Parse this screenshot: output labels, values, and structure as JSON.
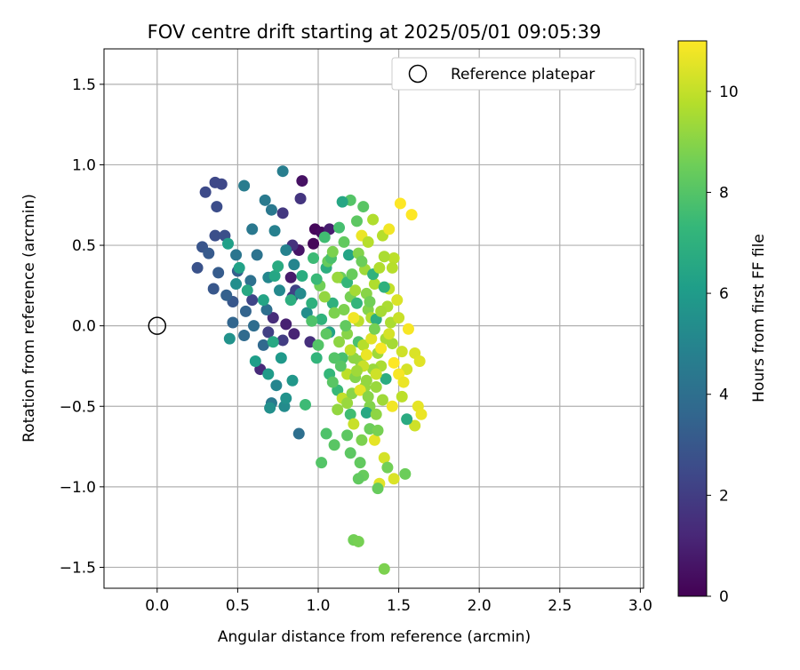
{
  "chart_data": {
    "type": "scatter",
    "title": "FOV centre drift starting at 2025/05/01 09:05:39",
    "xlabel": "Angular distance from reference (arcmin)",
    "ylabel": "Rotation from reference (arcmin)",
    "xlim": [
      -0.33,
      3.02
    ],
    "ylim": [
      -1.63,
      1.72
    ],
    "xticks": [
      "0.0",
      "0.5",
      "1.0",
      "1.5",
      "2.0",
      "2.5",
      "3.0"
    ],
    "yticks": [
      "−1.5",
      "−1.0",
      "−0.5",
      "0.0",
      "0.5",
      "1.0",
      "1.5"
    ],
    "grid": true,
    "legend": {
      "placement": "top-right",
      "entries": [
        "Reference platepar"
      ]
    },
    "reference_point": {
      "x": 0.0,
      "y": 0.0
    },
    "colorbar": {
      "label": "Hours from first FF file",
      "colormap": "viridis",
      "range": [
        0,
        11
      ],
      "ticks": [
        "0",
        "2",
        "4",
        "6",
        "8",
        "10"
      ]
    },
    "series": [
      {
        "points": [
          [
            0.98,
            0.6,
            0.2
          ],
          [
            1.02,
            0.58,
            0.3
          ],
          [
            0.9,
            0.9,
            0.5
          ],
          [
            0.88,
            0.47,
            0.6
          ],
          [
            0.83,
            0.3,
            0.8
          ],
          [
            1.07,
            0.6,
            0.9
          ],
          [
            0.97,
            0.51,
            0.2
          ],
          [
            0.8,
            0.01,
            1.0
          ],
          [
            0.85,
            -0.05,
            1.1
          ],
          [
            0.64,
            -0.27,
            1.3
          ],
          [
            0.72,
            0.05,
            1.4
          ],
          [
            0.95,
            -0.1,
            1.5
          ],
          [
            0.84,
            0.5,
            1.6
          ],
          [
            0.89,
            0.79,
            1.7
          ],
          [
            0.78,
            0.7,
            1.8
          ],
          [
            0.84,
            0.18,
            1.9
          ],
          [
            0.78,
            -0.09,
            2.0
          ],
          [
            0.69,
            -0.04,
            2.1
          ],
          [
            0.86,
            0.22,
            2.2
          ],
          [
            0.59,
            0.16,
            2.3
          ],
          [
            0.36,
            0.89,
            2.4
          ],
          [
            0.4,
            0.88,
            2.4
          ],
          [
            0.3,
            0.83,
            2.5
          ],
          [
            0.37,
            0.74,
            2.6
          ],
          [
            0.42,
            0.56,
            2.7
          ],
          [
            0.36,
            0.56,
            2.7
          ],
          [
            0.25,
            0.36,
            2.8
          ],
          [
            0.28,
            0.49,
            2.9
          ],
          [
            0.35,
            0.23,
            3.0
          ],
          [
            0.47,
            0.15,
            3.0
          ],
          [
            0.32,
            0.45,
            3.1
          ],
          [
            0.38,
            0.33,
            3.2
          ],
          [
            0.5,
            0.34,
            3.3
          ],
          [
            0.43,
            0.19,
            3.4
          ],
          [
            0.55,
            0.09,
            3.5
          ],
          [
            0.47,
            0.02,
            3.6
          ],
          [
            0.66,
            -0.12,
            3.7
          ],
          [
            0.54,
            -0.06,
            3.8
          ],
          [
            0.6,
            0.0,
            3.9
          ],
          [
            0.68,
            0.1,
            4.0
          ],
          [
            0.58,
            0.28,
            4.1
          ],
          [
            0.62,
            0.44,
            4.2
          ],
          [
            0.49,
            0.44,
            4.3
          ],
          [
            0.59,
            0.6,
            4.4
          ],
          [
            0.71,
            0.72,
            4.4
          ],
          [
            0.67,
            0.78,
            4.5
          ],
          [
            0.54,
            0.87,
            4.6
          ],
          [
            0.78,
            0.96,
            4.7
          ],
          [
            0.73,
            0.59,
            4.8
          ],
          [
            0.8,
            0.47,
            4.9
          ],
          [
            0.85,
            0.38,
            5.0
          ],
          [
            0.69,
            0.3,
            5.1
          ],
          [
            0.76,
            0.22,
            5.2
          ],
          [
            0.89,
            0.2,
            5.3
          ],
          [
            0.93,
            0.08,
            5.4
          ],
          [
            0.88,
            -0.67,
            4.0
          ],
          [
            0.74,
            -0.37,
            5.0
          ],
          [
            0.71,
            -0.48,
            4.5
          ],
          [
            0.7,
            -0.51,
            5.5
          ],
          [
            0.79,
            -0.5,
            5.3
          ],
          [
            0.8,
            -0.45,
            5.6
          ],
          [
            0.84,
            -0.34,
            5.8
          ],
          [
            0.77,
            -0.2,
            5.9
          ],
          [
            0.69,
            -0.3,
            6.0
          ],
          [
            0.61,
            -0.22,
            6.1
          ],
          [
            0.45,
            -0.08,
            5.6
          ],
          [
            0.49,
            0.26,
            5.4
          ],
          [
            0.44,
            0.51,
            6.2
          ],
          [
            0.51,
            0.36,
            6.3
          ],
          [
            0.66,
            0.16,
            6.4
          ],
          [
            0.73,
            0.31,
            6.5
          ],
          [
            0.56,
            0.22,
            6.6
          ],
          [
            0.72,
            -0.1,
            6.6
          ],
          [
            0.75,
            0.37,
            6.7
          ],
          [
            0.9,
            0.31,
            6.8
          ],
          [
            0.83,
            0.16,
            6.9
          ],
          [
            1.05,
            0.36,
            6.9
          ],
          [
            0.96,
            0.14,
            7.0
          ],
          [
            1.09,
            0.14,
            7.0
          ],
          [
            1.02,
            0.04,
            7.1
          ],
          [
            0.99,
            -0.2,
            7.2
          ],
          [
            1.07,
            -0.3,
            7.3
          ],
          [
            1.12,
            -0.4,
            7.4
          ],
          [
            0.92,
            -0.49,
            7.5
          ],
          [
            1.2,
            -0.55,
            7.6
          ],
          [
            1.15,
            -0.2,
            7.7
          ],
          [
            1.25,
            -0.1,
            7.8
          ],
          [
            1.05,
            -0.67,
            7.9
          ],
          [
            1.02,
            -0.85,
            8.0
          ],
          [
            1.1,
            -0.74,
            8.1
          ],
          [
            1.2,
            -0.79,
            8.2
          ],
          [
            1.26,
            -0.85,
            8.3
          ],
          [
            1.28,
            -0.93,
            8.4
          ],
          [
            1.32,
            -0.64,
            8.5
          ],
          [
            1.22,
            -1.33,
            8.6
          ],
          [
            1.25,
            -1.34,
            8.7
          ],
          [
            1.41,
            -1.51,
            8.8
          ],
          [
            1.2,
            0.78,
            8.0
          ],
          [
            1.28,
            0.74,
            8.1
          ],
          [
            1.24,
            0.65,
            8.2
          ],
          [
            1.16,
            0.52,
            8.3
          ],
          [
            1.06,
            0.4,
            8.4
          ],
          [
            1.14,
            0.3,
            8.5
          ],
          [
            1.01,
            0.25,
            8.6
          ],
          [
            1.2,
            0.18,
            8.7
          ],
          [
            1.1,
            0.08,
            8.8
          ],
          [
            1.31,
            0.1,
            8.9
          ],
          [
            1.18,
            -0.05,
            9.0
          ],
          [
            1.26,
            -0.22,
            9.1
          ],
          [
            1.3,
            -0.34,
            9.2
          ],
          [
            1.36,
            -0.38,
            9.3
          ],
          [
            1.37,
            -0.17,
            9.4
          ],
          [
            1.42,
            -0.08,
            9.5
          ],
          [
            1.45,
            0.02,
            9.6
          ],
          [
            1.35,
            0.26,
            9.7
          ],
          [
            1.4,
            0.56,
            9.8
          ],
          [
            1.47,
            0.42,
            9.9
          ],
          [
            1.44,
            0.23,
            10.0
          ],
          [
            1.5,
            0.05,
            10.1
          ],
          [
            1.52,
            -0.16,
            10.2
          ],
          [
            1.55,
            -0.27,
            10.3
          ],
          [
            1.6,
            -0.17,
            10.4
          ],
          [
            1.63,
            -0.22,
            10.5
          ],
          [
            1.62,
            -0.5,
            10.6
          ],
          [
            1.64,
            -0.55,
            10.7
          ],
          [
            1.46,
            -0.5,
            10.8
          ],
          [
            1.5,
            -0.3,
            10.9
          ],
          [
            1.56,
            -0.02,
            10.9
          ],
          [
            1.51,
            0.76,
            11.0
          ],
          [
            1.58,
            0.69,
            11.0
          ],
          [
            1.44,
            0.6,
            10.8
          ],
          [
            1.27,
            0.56,
            10.7
          ],
          [
            1.35,
            -0.71,
            10.6
          ],
          [
            1.38,
            -0.98,
            10.5
          ],
          [
            1.47,
            -0.95,
            10.4
          ],
          [
            1.41,
            -0.82,
            10.3
          ],
          [
            1.6,
            -0.62,
            10.2
          ],
          [
            1.22,
            -0.61,
            10.1
          ],
          [
            1.15,
            -0.45,
            10.0
          ],
          [
            1.18,
            -0.3,
            9.9
          ],
          [
            1.28,
            -0.12,
            9.8
          ],
          [
            1.33,
            0.05,
            9.7
          ],
          [
            1.39,
            -0.25,
            9.6
          ],
          [
            1.23,
            0.22,
            9.5
          ],
          [
            1.29,
            0.35,
            9.4
          ],
          [
            1.12,
            0.3,
            9.3
          ],
          [
            1.04,
            0.18,
            9.2
          ],
          [
            1.13,
            -0.1,
            9.1
          ],
          [
            1.21,
            -0.42,
            9.0
          ],
          [
            1.32,
            -0.5,
            8.9
          ],
          [
            1.27,
            -0.71,
            8.8
          ],
          [
            1.37,
            -0.65,
            8.7
          ],
          [
            1.43,
            -0.88,
            8.6
          ],
          [
            1.54,
            -0.92,
            8.5
          ],
          [
            1.37,
            -1.01,
            8.4
          ],
          [
            1.25,
            -0.95,
            8.3
          ],
          [
            1.18,
            -0.68,
            8.2
          ],
          [
            1.09,
            -0.35,
            8.1
          ],
          [
            1.0,
            -0.12,
            8.0
          ],
          [
            0.96,
            0.03,
            7.9
          ],
          [
            1.08,
            0.42,
            7.8
          ],
          [
            1.13,
            0.61,
            7.7
          ],
          [
            1.04,
            0.55,
            7.6
          ],
          [
            0.97,
            0.42,
            7.5
          ],
          [
            0.99,
            0.29,
            7.4
          ],
          [
            1.18,
            0.27,
            7.3
          ],
          [
            1.24,
            0.14,
            7.2
          ],
          [
            1.34,
            0.32,
            7.1
          ],
          [
            1.41,
            0.24,
            7.0
          ],
          [
            1.36,
            0.04,
            6.9
          ],
          [
            1.42,
            -0.33,
            6.8
          ],
          [
            1.55,
            -0.58,
            6.7
          ],
          [
            1.3,
            -0.54,
            6.6
          ],
          [
            1.15,
            0.77,
            6.5
          ],
          [
            1.19,
            0.44,
            6.4
          ],
          [
            1.07,
            -0.04,
            6.3
          ],
          [
            1.16,
            0.1,
            8.8
          ],
          [
            1.25,
            0.45,
            8.9
          ],
          [
            1.3,
            0.2,
            9.0
          ],
          [
            1.22,
            -0.2,
            9.1
          ],
          [
            1.29,
            -0.38,
            9.2
          ],
          [
            1.34,
            -0.27,
            9.3
          ],
          [
            1.4,
            -0.46,
            9.4
          ],
          [
            1.46,
            -0.11,
            9.5
          ],
          [
            1.43,
            0.12,
            9.6
          ],
          [
            1.38,
            0.36,
            9.7
          ],
          [
            1.31,
            0.52,
            9.8
          ],
          [
            1.25,
            0.03,
            9.9
          ],
          [
            1.2,
            -0.15,
            10.0
          ],
          [
            1.28,
            -0.25,
            10.1
          ],
          [
            1.36,
            -0.3,
            10.2
          ],
          [
            1.44,
            -0.05,
            10.3
          ],
          [
            1.49,
            0.16,
            10.4
          ],
          [
            1.33,
            -0.08,
            10.5
          ],
          [
            1.26,
            -0.4,
            10.6
          ],
          [
            1.3,
            -0.18,
            10.7
          ],
          [
            1.22,
            0.05,
            10.8
          ],
          [
            1.39,
            -0.14,
            10.9
          ],
          [
            1.47,
            -0.23,
            11.0
          ],
          [
            1.53,
            -0.35,
            10.7
          ],
          [
            1.1,
            -0.2,
            8.0
          ],
          [
            1.14,
            -0.25,
            8.1
          ],
          [
            1.05,
            -0.05,
            8.2
          ],
          [
            1.17,
            0.0,
            8.3
          ],
          [
            1.21,
            0.32,
            8.4
          ],
          [
            1.27,
            0.4,
            8.5
          ],
          [
            1.32,
            0.15,
            8.6
          ],
          [
            1.35,
            -0.02,
            8.7
          ],
          [
            1.09,
            0.46,
            8.8
          ],
          [
            1.23,
            -0.32,
            8.9
          ],
          [
            1.31,
            -0.44,
            9.0
          ],
          [
            1.36,
            -0.55,
            9.1
          ],
          [
            1.12,
            -0.52,
            9.2
          ],
          [
            1.18,
            -0.48,
            9.3
          ],
          [
            1.24,
            -0.28,
            9.4
          ],
          [
            1.39,
            0.09,
            9.5
          ],
          [
            1.41,
            0.43,
            9.6
          ],
          [
            1.34,
            0.66,
            9.7
          ],
          [
            1.46,
            0.36,
            9.8
          ],
          [
            1.52,
            -0.44,
            9.9
          ]
        ]
      }
    ]
  }
}
